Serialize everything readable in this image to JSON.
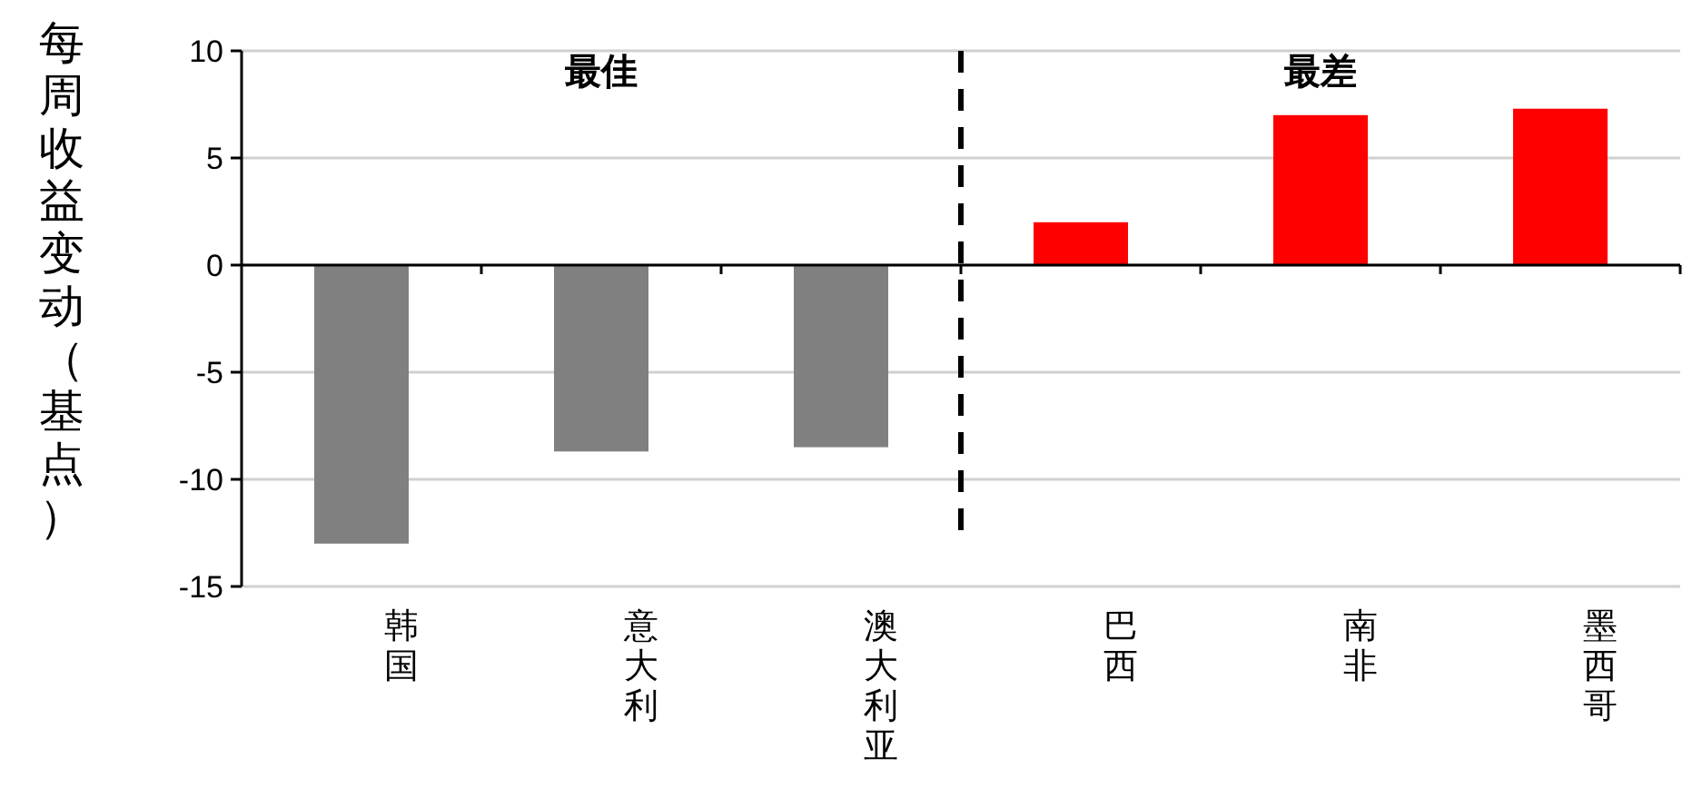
{
  "chart_data": {
    "type": "bar",
    "ylabel": "每周收益变动（基点）",
    "categories": [
      "韩国",
      "意大利",
      "澳大利亚",
      "巴西",
      "南非",
      "墨西哥"
    ],
    "values": [
      -13,
      -8.7,
      -8.5,
      2.0,
      7.0,
      7.3
    ],
    "colors": [
      "#808080",
      "#808080",
      "#808080",
      "#ff0000",
      "#ff0000",
      "#ff0000"
    ],
    "ylim": [
      -15,
      10
    ],
    "yticks": [
      -15,
      -10,
      -5,
      0,
      5,
      10
    ],
    "grid": "y",
    "annotations": [
      "最佳",
      "最差"
    ]
  }
}
